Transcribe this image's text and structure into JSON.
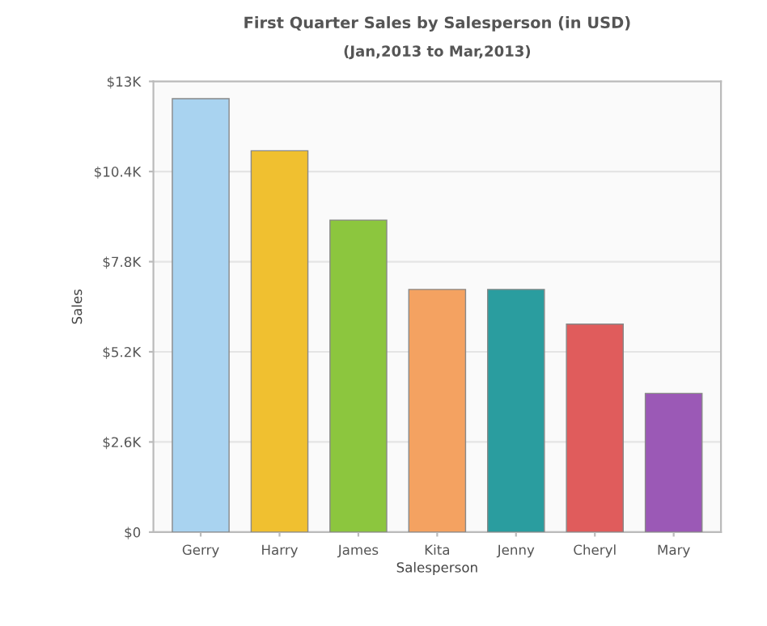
{
  "chart_data": {
    "type": "bar",
    "title": "First Quarter Sales by Salesperson (in USD)",
    "subtitle": "(Jan,2013 to Mar,2013)",
    "xlabel": "Salesperson",
    "ylabel": "Sales",
    "categories": [
      "Gerry",
      "Harry",
      "James",
      "Kita",
      "Jenny",
      "Cheryl",
      "Mary"
    ],
    "values": [
      12500,
      11000,
      9000,
      7000,
      7000,
      6000,
      4000
    ],
    "colors": [
      "#a9d3f0",
      "#f0c030",
      "#8cc63e",
      "#f4a261",
      "#2a9d9f",
      "#e05c5c",
      "#9b59b6"
    ],
    "ylim": [
      0,
      13000
    ],
    "yticks": [
      {
        "value": 0,
        "label": "$0"
      },
      {
        "value": 2600,
        "label": "$2.6K"
      },
      {
        "value": 5200,
        "label": "$5.2K"
      },
      {
        "value": 7800,
        "label": "$7.8K"
      },
      {
        "value": 10400,
        "label": "$10.4K"
      },
      {
        "value": 13000,
        "label": "$13K"
      }
    ],
    "grid": "y"
  }
}
